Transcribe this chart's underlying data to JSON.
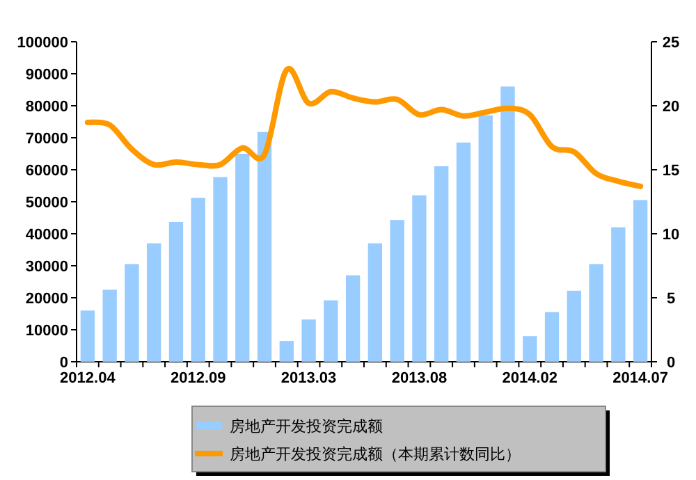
{
  "chart_data": {
    "type": "bar",
    "categories": [
      "2012.04",
      null,
      null,
      null,
      null,
      "2012.09",
      null,
      null,
      null,
      null,
      "2013.03",
      null,
      null,
      null,
      null,
      "2013.08",
      null,
      null,
      null,
      null,
      "2014.02",
      null,
      null,
      null,
      null,
      "2014.07"
    ],
    "series": [
      {
        "name": "房地产开发投资完成额",
        "color": "#99ccff",
        "values": [
          16000,
          22500,
          30500,
          37000,
          43700,
          51200,
          57700,
          65000,
          71800,
          6500,
          13200,
          19200,
          27000,
          37000,
          44300,
          52000,
          61100,
          68500,
          77000,
          86000,
          8000,
          15500,
          22200,
          30500,
          42000,
          50500
        ]
      },
      {
        "name": "房地产开发投资完成额（本期累计数同比）",
        "type": "line",
        "axis": "y2",
        "color": "#ff9900",
        "values": [
          18.7,
          18.5,
          16.6,
          15.4,
          15.6,
          15.4,
          15.4,
          16.7,
          16.2,
          22.8,
          20.2,
          21.1,
          20.6,
          20.3,
          20.5,
          19.3,
          19.7,
          19.2,
          19.5,
          19.8,
          19.3,
          16.8,
          16.4,
          14.7,
          14.1,
          13.7
        ]
      }
    ],
    "ylim": [
      0,
      100000
    ],
    "yticks": [
      0,
      10000,
      20000,
      30000,
      40000,
      50000,
      60000,
      70000,
      80000,
      90000,
      100000
    ],
    "y2lim": [
      0,
      25
    ],
    "y2ticks": [
      0,
      5,
      10,
      15,
      20,
      25
    ],
    "legend": "bottom"
  }
}
